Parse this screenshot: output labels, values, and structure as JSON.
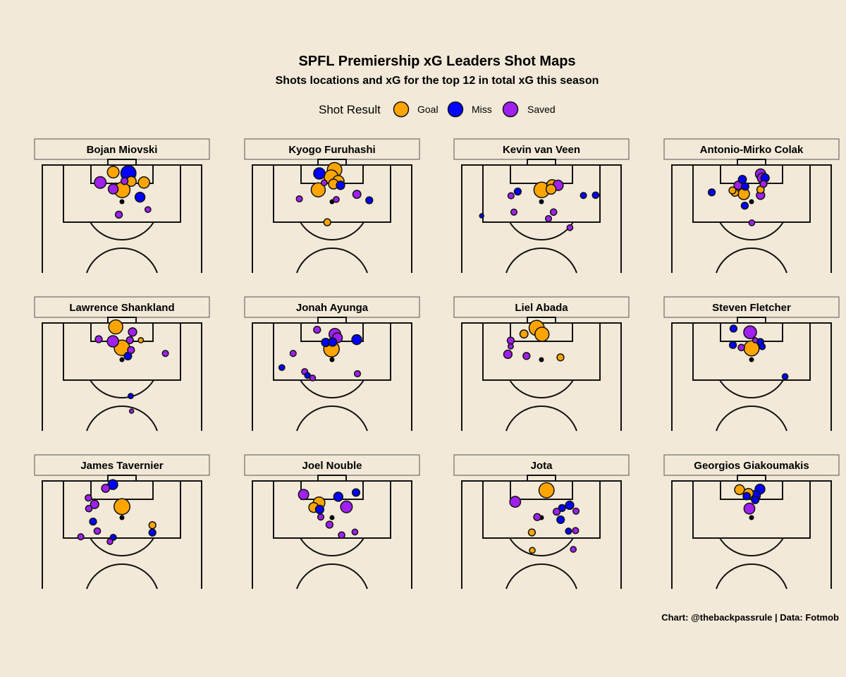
{
  "chart_data": {
    "type": "scatter",
    "title": "SPFL Premiership xG Leaders Shot Maps",
    "subtitle": "Shots locations and xG for the top 12 in total xG this season",
    "caption": "Chart: @thebackpassrule | Data: Fotmob",
    "legend": {
      "title": "Shot Result",
      "placement": "top-center",
      "entries": [
        {
          "label": "Goal",
          "color": "#FFA500"
        },
        {
          "label": "Miss",
          "color": "#0000FF"
        },
        {
          "label": "Saved",
          "color": "#A020F0"
        }
      ]
    },
    "units": {
      "x": "yards from pitch centre line (negative = left)",
      "y": "yards from goal line",
      "size": "xG"
    },
    "panels": [
      {
        "player": "Bojan Miovski",
        "shots": [
          {
            "x": -3.1,
            "y": 2.5,
            "xg": 0.23,
            "result": "Goal"
          },
          {
            "x": 2.3,
            "y": 2.9,
            "xg": 0.49,
            "result": "Miss"
          },
          {
            "x": -7.7,
            "y": 6.2,
            "xg": 0.23,
            "result": "Saved"
          },
          {
            "x": 0.9,
            "y": 5.7,
            "xg": 0.03,
            "result": "Saved"
          },
          {
            "x": 3.3,
            "y": 5.8,
            "xg": 0.13,
            "result": "Goal"
          },
          {
            "x": 7.8,
            "y": 6.2,
            "xg": 0.21,
            "result": "Goal"
          },
          {
            "x": -3.1,
            "y": 8.5,
            "xg": 0.13,
            "result": "Saved"
          },
          {
            "x": 0.1,
            "y": 8.8,
            "xg": 0.53,
            "result": "Goal"
          },
          {
            "x": 6.4,
            "y": 11.4,
            "xg": 0.13,
            "result": "Miss"
          },
          {
            "x": 9.2,
            "y": 15.8,
            "xg": 0.01,
            "result": "Saved"
          },
          {
            "x": -1.1,
            "y": 17.6,
            "xg": 0.03,
            "result": "Saved"
          }
        ]
      },
      {
        "player": "Kyogo Furuhashi",
        "shots": [
          {
            "x": -4.5,
            "y": 3.0,
            "xg": 0.21,
            "result": "Miss"
          },
          {
            "x": -0.3,
            "y": 4.25,
            "xg": 0.4,
            "result": "Goal"
          },
          {
            "x": 2.2,
            "y": 5.8,
            "xg": 0.23,
            "result": "Goal"
          },
          {
            "x": 0.5,
            "y": 6.75,
            "xg": 0.13,
            "result": "Goal"
          },
          {
            "x": 0.9,
            "y": 1.7,
            "xg": 0.44,
            "result": "Goal"
          },
          {
            "x": -2.8,
            "y": 6.3,
            "xg": 0.01,
            "result": "Saved"
          },
          {
            "x": 3.0,
            "y": 7.2,
            "xg": 0.07,
            "result": "Miss"
          },
          {
            "x": -4.9,
            "y": 8.8,
            "xg": 0.4,
            "result": "Goal"
          },
          {
            "x": -11.6,
            "y": 12.0,
            "xg": 0.014,
            "result": "Saved"
          },
          {
            "x": 1.5,
            "y": 12.2,
            "xg": 0.01,
            "result": "Saved"
          },
          {
            "x": 8.8,
            "y": 10.4,
            "xg": 0.06,
            "result": "Saved"
          },
          {
            "x": 13.2,
            "y": 12.5,
            "xg": 0.03,
            "result": "Miss"
          },
          {
            "x": -1.7,
            "y": 20.3,
            "xg": 0.03,
            "result": "Goal"
          }
        ]
      },
      {
        "player": "Kevin van Veen",
        "shots": [
          {
            "x": 5.9,
            "y": 7.2,
            "xg": 0.15,
            "result": "Saved"
          },
          {
            "x": 3.4,
            "y": 8.6,
            "xg": 0.13,
            "result": "Goal"
          },
          {
            "x": 0.1,
            "y": 8.8,
            "xg": 0.53,
            "result": "Goal"
          },
          {
            "x": 3.8,
            "y": 7.1,
            "xg": 0.18,
            "result": "Goal"
          },
          {
            "x": -8.4,
            "y": 9.4,
            "xg": 0.03,
            "result": "Miss"
          },
          {
            "x": -10.8,
            "y": 10.9,
            "xg": 0.014,
            "result": "Saved"
          },
          {
            "x": 14.9,
            "y": 10.8,
            "xg": 0.014,
            "result": "Miss"
          },
          {
            "x": 19.2,
            "y": 10.7,
            "xg": 0.02,
            "result": "Miss"
          },
          {
            "x": -9.75,
            "y": 16.7,
            "xg": 0.014,
            "result": "Saved"
          },
          {
            "x": 4.3,
            "y": 16.7,
            "xg": 0.02,
            "result": "Saved"
          },
          {
            "x": 2.5,
            "y": 19.0,
            "xg": 0.014,
            "result": "Saved"
          },
          {
            "x": -21.2,
            "y": 18.0,
            "xg": 0.0,
            "result": "Miss"
          },
          {
            "x": 10.1,
            "y": 22.2,
            "xg": 0.01,
            "result": "Saved"
          }
        ]
      },
      {
        "player": "Antonio-Mirko Colak",
        "shots": [
          {
            "x": 3.2,
            "y": 3.2,
            "xg": 0.15,
            "result": "Saved"
          },
          {
            "x": 3.8,
            "y": 4.6,
            "xg": 0.13,
            "result": "Saved"
          },
          {
            "x": 4.25,
            "y": 6.7,
            "xg": 0.03,
            "result": "Saved"
          },
          {
            "x": 4.8,
            "y": 4.6,
            "xg": 0.07,
            "result": "Miss"
          },
          {
            "x": -3.25,
            "y": 5.1,
            "xg": 0.06,
            "result": "Miss"
          },
          {
            "x": -2.25,
            "y": 7.6,
            "xg": 0.04,
            "result": "Miss"
          },
          {
            "x": -4.75,
            "y": 7.2,
            "xg": 0.07,
            "result": "Saved"
          },
          {
            "x": -6.75,
            "y": 9.0,
            "xg": 0.03,
            "result": "Goal"
          },
          {
            "x": -5.9,
            "y": 9.8,
            "xg": 0.04,
            "result": "Goal"
          },
          {
            "x": -2.75,
            "y": 10.25,
            "xg": 0.21,
            "result": "Goal"
          },
          {
            "x": 3.2,
            "y": 8.7,
            "xg": 0.04,
            "result": "Goal"
          },
          {
            "x": 3.2,
            "y": 10.7,
            "xg": 0.07,
            "result": "Saved"
          },
          {
            "x": -14.1,
            "y": 9.7,
            "xg": 0.03,
            "result": "Miss"
          },
          {
            "x": -2.4,
            "y": 14.4,
            "xg": 0.03,
            "result": "Miss"
          },
          {
            "x": 0.1,
            "y": 20.5,
            "xg": 0.01,
            "result": "Saved"
          }
        ]
      },
      {
        "player": "Lawrence Shankland",
        "shots": [
          {
            "x": -2.2,
            "y": 1.4,
            "xg": 0.4,
            "result": "Goal"
          },
          {
            "x": 3.75,
            "y": 3.2,
            "xg": 0.07,
            "result": "Saved"
          },
          {
            "x": -8.25,
            "y": 5.75,
            "xg": 0.03,
            "result": "Saved"
          },
          {
            "x": -3.2,
            "y": 6.5,
            "xg": 0.21,
            "result": "Saved"
          },
          {
            "x": 2.8,
            "y": 6.1,
            "xg": 0.03,
            "result": "Saved"
          },
          {
            "x": 6.7,
            "y": 6.1,
            "xg": 0.004,
            "result": "Goal"
          },
          {
            "x": 3.2,
            "y": 9.6,
            "xg": 0.03,
            "result": "Saved"
          },
          {
            "x": 0.0,
            "y": 8.8,
            "xg": 0.53,
            "result": "Goal"
          },
          {
            "x": 2.1,
            "y": 11.75,
            "xg": 0.045,
            "result": "Miss"
          },
          {
            "x": 15.4,
            "y": 10.8,
            "xg": 0.014,
            "result": "Saved"
          },
          {
            "x": 3.1,
            "y": 25.9,
            "xg": 0.004,
            "result": "Miss"
          },
          {
            "x": 3.4,
            "y": 31.25,
            "xg": 0.0,
            "result": "Saved"
          }
        ]
      },
      {
        "player": "Jonah Ayunga",
        "shots": [
          {
            "x": -5.3,
            "y": 2.4,
            "xg": 0.03,
            "result": "Saved"
          },
          {
            "x": 1.0,
            "y": 4.0,
            "xg": 0.23,
            "result": "Saved"
          },
          {
            "x": 1.9,
            "y": 5.25,
            "xg": 0.13,
            "result": "Saved"
          },
          {
            "x": -0.2,
            "y": 9.25,
            "xg": 0.53,
            "result": "Goal"
          },
          {
            "x": -2.25,
            "y": 6.9,
            "xg": 0.07,
            "result": "Miss"
          },
          {
            "x": 0.2,
            "y": 6.75,
            "xg": 0.07,
            "result": "Miss"
          },
          {
            "x": 8.75,
            "y": 5.9,
            "xg": 0.13,
            "result": "Miss"
          },
          {
            "x": -13.8,
            "y": 10.8,
            "xg": 0.014,
            "result": "Saved"
          },
          {
            "x": -17.8,
            "y": 15.8,
            "xg": 0.01,
            "result": "Miss"
          },
          {
            "x": -9.7,
            "y": 17.25,
            "xg": 0.014,
            "result": "Saved"
          },
          {
            "x": -8.7,
            "y": 18.6,
            "xg": 0.01,
            "result": "Miss"
          },
          {
            "x": -6.9,
            "y": 19.5,
            "xg": 0.01,
            "result": "Saved"
          },
          {
            "x": 9.0,
            "y": 18.0,
            "xg": 0.014,
            "result": "Saved"
          }
        ]
      },
      {
        "player": "Liel Abada",
        "shots": [
          {
            "x": 0.2,
            "y": 4.0,
            "xg": 0.4,
            "result": "Goal"
          },
          {
            "x": -1.7,
            "y": 1.75,
            "xg": 0.49,
            "result": "Goal"
          },
          {
            "x": -6.2,
            "y": 3.9,
            "xg": 0.06,
            "result": "Goal"
          },
          {
            "x": -10.9,
            "y": 6.25,
            "xg": 0.03,
            "result": "Saved"
          },
          {
            "x": -10.9,
            "y": 8.3,
            "xg": 0.004,
            "result": "Saved"
          },
          {
            "x": -11.9,
            "y": 11.1,
            "xg": 0.07,
            "result": "Saved"
          },
          {
            "x": -5.3,
            "y": 11.7,
            "xg": 0.03,
            "result": "Saved"
          },
          {
            "x": 6.75,
            "y": 12.2,
            "xg": 0.03,
            "result": "Goal"
          }
        ]
      },
      {
        "player": "Steven Fletcher",
        "shots": [
          {
            "x": -6.4,
            "y": 2.0,
            "xg": 0.03,
            "result": "Miss"
          },
          {
            "x": -0.5,
            "y": 3.3,
            "xg": 0.3,
            "result": "Saved"
          },
          {
            "x": 1.3,
            "y": 6.1,
            "xg": 0.004,
            "result": "Saved"
          },
          {
            "x": 3.1,
            "y": 6.75,
            "xg": 0.03,
            "result": "Miss"
          },
          {
            "x": -6.6,
            "y": 7.8,
            "xg": 0.03,
            "result": "Miss"
          },
          {
            "x": -3.6,
            "y": 8.7,
            "xg": 0.02,
            "result": "Saved"
          },
          {
            "x": 0.0,
            "y": 9.0,
            "xg": 0.49,
            "result": "Goal"
          },
          {
            "x": 3.8,
            "y": 8.4,
            "xg": 0.014,
            "result": "Miss"
          },
          {
            "x": 11.9,
            "y": 19.0,
            "xg": 0.01,
            "result": "Miss"
          }
        ]
      },
      {
        "player": "James Tavernier",
        "shots": [
          {
            "x": -5.8,
            "y": 2.6,
            "xg": 0.06,
            "result": "Saved"
          },
          {
            "x": -3.25,
            "y": 1.3,
            "xg": 0.13,
            "result": "Miss"
          },
          {
            "x": -11.9,
            "y": 6.0,
            "xg": 0.02,
            "result": "Saved"
          },
          {
            "x": -9.7,
            "y": 8.3,
            "xg": 0.07,
            "result": "Saved"
          },
          {
            "x": -11.75,
            "y": 9.8,
            "xg": 0.02,
            "result": "Saved"
          },
          {
            "x": 0.0,
            "y": 9.1,
            "xg": 0.56,
            "result": "Goal"
          },
          {
            "x": -10.25,
            "y": 14.4,
            "xg": 0.03,
            "result": "Miss"
          },
          {
            "x": -8.75,
            "y": 17.75,
            "xg": 0.02,
            "result": "Saved"
          },
          {
            "x": -14.6,
            "y": 19.8,
            "xg": 0.014,
            "result": "Saved"
          },
          {
            "x": -3.1,
            "y": 20.0,
            "xg": 0.014,
            "result": "Miss"
          },
          {
            "x": -4.25,
            "y": 21.5,
            "xg": 0.01,
            "result": "Saved"
          },
          {
            "x": 10.8,
            "y": 15.7,
            "xg": 0.03,
            "result": "Goal"
          },
          {
            "x": 10.8,
            "y": 18.3,
            "xg": 0.03,
            "result": "Miss"
          }
        ]
      },
      {
        "player": "Joel Nouble",
        "shots": [
          {
            "x": -10.1,
            "y": 4.8,
            "xg": 0.15,
            "result": "Saved"
          },
          {
            "x": -4.6,
            "y": 7.75,
            "xg": 0.23,
            "result": "Goal"
          },
          {
            "x": -6.5,
            "y": 9.4,
            "xg": 0.13,
            "result": "Goal"
          },
          {
            "x": -4.4,
            "y": 10.1,
            "xg": 0.07,
            "result": "Miss"
          },
          {
            "x": 2.2,
            "y": 5.6,
            "xg": 0.1,
            "result": "Miss"
          },
          {
            "x": 8.5,
            "y": 4.1,
            "xg": 0.045,
            "result": "Miss"
          },
          {
            "x": 5.1,
            "y": 9.2,
            "xg": 0.23,
            "result": "Saved"
          },
          {
            "x": -4.0,
            "y": 12.8,
            "xg": 0.014,
            "result": "Saved"
          },
          {
            "x": -0.9,
            "y": 15.5,
            "xg": 0.03,
            "result": "Saved"
          },
          {
            "x": 3.4,
            "y": 19.2,
            "xg": 0.02,
            "result": "Saved"
          },
          {
            "x": 8.1,
            "y": 18.1,
            "xg": 0.01,
            "result": "Saved"
          }
        ]
      },
      {
        "player": "Jota",
        "shots": [
          {
            "x": 1.8,
            "y": 3.3,
            "xg": 0.49,
            "result": "Goal"
          },
          {
            "x": -9.3,
            "y": 7.4,
            "xg": 0.18,
            "result": "Saved"
          },
          {
            "x": 10.0,
            "y": 8.6,
            "xg": 0.07,
            "result": "Miss"
          },
          {
            "x": 7.3,
            "y": 9.6,
            "xg": 0.03,
            "result": "Miss"
          },
          {
            "x": 5.4,
            "y": 10.9,
            "xg": 0.03,
            "result": "Saved"
          },
          {
            "x": 12.25,
            "y": 10.7,
            "xg": 0.014,
            "result": "Saved"
          },
          {
            "x": -1.5,
            "y": 12.8,
            "xg": 0.03,
            "result": "Saved"
          },
          {
            "x": 6.8,
            "y": 13.75,
            "xg": 0.045,
            "result": "Miss"
          },
          {
            "x": -3.4,
            "y": 18.25,
            "xg": 0.03,
            "result": "Goal"
          },
          {
            "x": 9.6,
            "y": 17.8,
            "xg": 0.014,
            "result": "Miss"
          },
          {
            "x": 12.1,
            "y": 17.6,
            "xg": 0.014,
            "result": "Saved"
          },
          {
            "x": -3.25,
            "y": 24.6,
            "xg": 0.01,
            "result": "Goal"
          },
          {
            "x": 11.3,
            "y": 24.25,
            "xg": 0.01,
            "result": "Saved"
          }
        ]
      },
      {
        "player": "Georgios Giakoumakis",
        "shots": [
          {
            "x": 3.0,
            "y": 2.9,
            "xg": 0.13,
            "result": "Miss"
          },
          {
            "x": -1.7,
            "y": 5.4,
            "xg": 0.04,
            "result": "Miss"
          },
          {
            "x": 1.3,
            "y": 6.75,
            "xg": 0.04,
            "result": "Miss"
          },
          {
            "x": 1.4,
            "y": 5.1,
            "xg": 0.13,
            "result": "Miss"
          },
          {
            "x": -4.25,
            "y": 3.1,
            "xg": 0.13,
            "result": "Goal"
          },
          {
            "x": -1.1,
            "y": 4.4,
            "xg": 0.13,
            "result": "Goal"
          },
          {
            "x": -0.75,
            "y": 9.8,
            "xg": 0.18,
            "result": "Saved"
          }
        ]
      }
    ]
  }
}
